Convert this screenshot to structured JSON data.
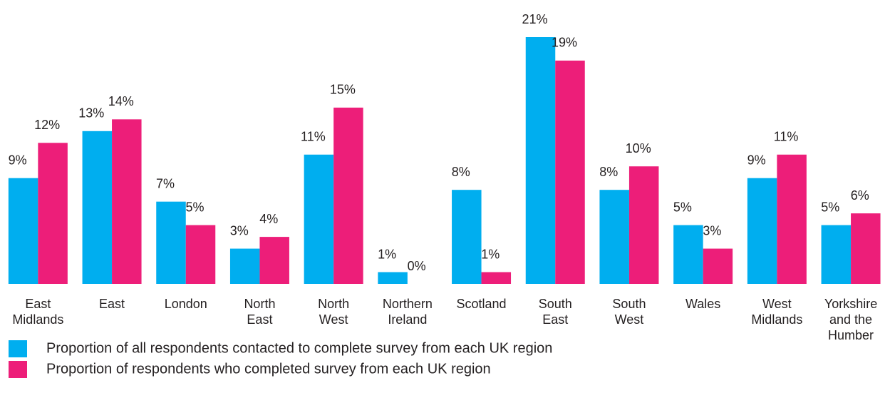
{
  "chart_data": {
    "type": "bar",
    "categories": [
      "East Midlands",
      "East",
      "London",
      "North East",
      "North West",
      "Northern Ireland",
      "Scotland",
      "South East",
      "South West",
      "Wales",
      "West Midlands",
      "Yorkshire and the Humber"
    ],
    "series": [
      {
        "name": "Proportion of all respondents contacted to complete survey from each UK region",
        "color": "#00aeef",
        "values": [
          9,
          13,
          7,
          3,
          11,
          1,
          8,
          21,
          8,
          5,
          9,
          5
        ],
        "value_labels": [
          "9%",
          "13%",
          "7%",
          "3%",
          "11%",
          "1%",
          "8%",
          "21%",
          "8%",
          "5%",
          "9%",
          "5%"
        ]
      },
      {
        "name": "Proportion of respondents who completed survey from each UK region",
        "color": "#ed1e79",
        "values": [
          12,
          14,
          5,
          4,
          15,
          0,
          1,
          19,
          10,
          3,
          11,
          6
        ],
        "value_labels": [
          "12%",
          "14%",
          "5%",
          "4%",
          "15%",
          "0%",
          "1%",
          "19%",
          "10%",
          "3%",
          "11%",
          "6%"
        ]
      }
    ]
  }
}
